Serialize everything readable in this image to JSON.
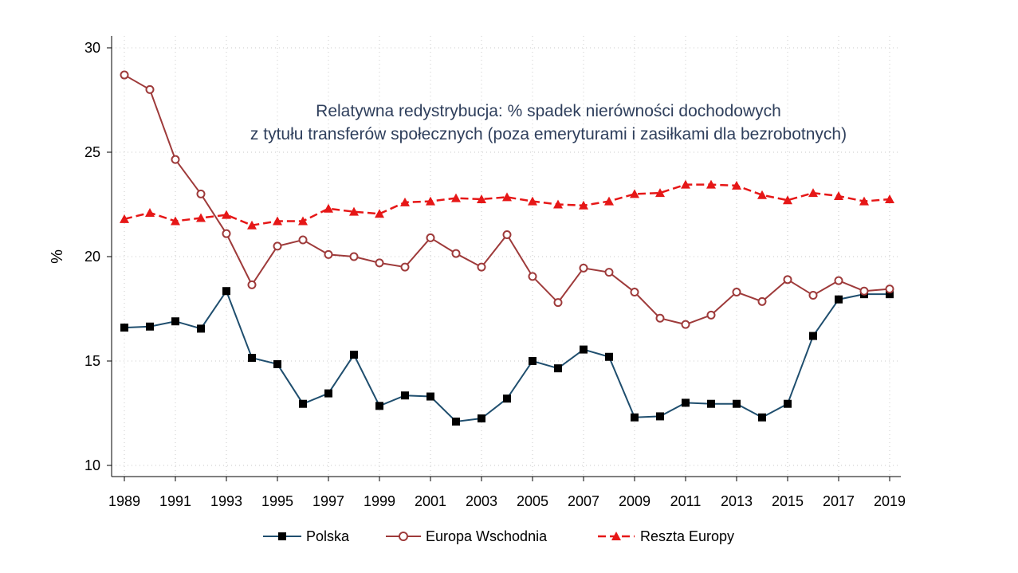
{
  "chart_data": {
    "type": "line",
    "title_lines": [
      "Relatywna redystrybucja: % spadek nierówności dochodowych",
      "z tytułu transferów społecznych (poza emeryturami i zasiłkami dla bezrobotnych)"
    ],
    "xlabel": "",
    "ylabel": "%",
    "xlim": [
      1989,
      2019
    ],
    "ylim": [
      10,
      30
    ],
    "x_ticks": [
      1989,
      1991,
      1993,
      1995,
      1997,
      1999,
      2001,
      2003,
      2005,
      2007,
      2009,
      2011,
      2013,
      2015,
      2017,
      2019
    ],
    "y_ticks": [
      10,
      15,
      20,
      25,
      30
    ],
    "grid": true,
    "legend_position": "bottom",
    "x": [
      1989,
      1990,
      1991,
      1992,
      1993,
      1994,
      1995,
      1996,
      1997,
      1998,
      1999,
      2000,
      2001,
      2002,
      2003,
      2004,
      2005,
      2006,
      2007,
      2008,
      2009,
      2010,
      2011,
      2012,
      2013,
      2014,
      2015,
      2016,
      2017,
      2018,
      2019
    ],
    "series": [
      {
        "name": "Polska",
        "color": "#1f4e6e",
        "marker": "square",
        "line_style": "solid",
        "values": [
          16.6,
          16.65,
          16.9,
          16.55,
          18.35,
          15.15,
          14.85,
          12.95,
          13.45,
          15.3,
          12.85,
          13.35,
          13.3,
          12.1,
          12.25,
          13.2,
          15.0,
          14.65,
          15.55,
          15.2,
          12.3,
          12.35,
          13.0,
          12.95,
          12.95,
          12.3,
          12.95,
          16.2,
          17.95,
          18.2,
          18.2
        ]
      },
      {
        "name": "Europa Wschodnia",
        "color": "#9e3a3a",
        "marker": "hollow-circle",
        "line_style": "solid",
        "values": [
          28.7,
          28.0,
          24.65,
          23.0,
          21.1,
          18.65,
          20.5,
          20.8,
          20.1,
          20.0,
          19.7,
          19.5,
          20.9,
          20.15,
          19.5,
          21.05,
          19.05,
          17.8,
          19.45,
          19.25,
          18.3,
          17.05,
          16.75,
          17.2,
          18.3,
          17.85,
          18.9,
          18.15,
          18.85,
          18.35,
          18.45
        ]
      },
      {
        "name": "Reszta Europy",
        "color": "#e61717",
        "marker": "triangle",
        "line_style": "dashed",
        "values": [
          21.8,
          22.1,
          21.7,
          21.85,
          22.0,
          21.5,
          21.7,
          21.7,
          22.3,
          22.15,
          22.05,
          22.6,
          22.65,
          22.8,
          22.75,
          22.85,
          22.65,
          22.5,
          22.45,
          22.65,
          23.0,
          23.05,
          23.45,
          23.45,
          23.4,
          22.95,
          22.7,
          23.05,
          22.9,
          22.65,
          22.75
        ]
      }
    ]
  }
}
